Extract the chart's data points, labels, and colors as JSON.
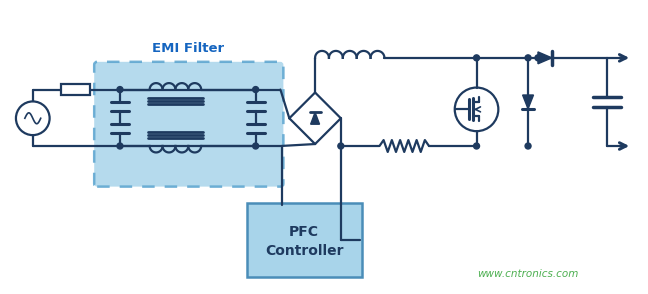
{
  "bg_color": "#ffffff",
  "line_color": "#1e3a5f",
  "emi_box_edge": "#5ba4cf",
  "emi_box_fill": "#a8d4ea",
  "pfc_box_edge": "#4a8db8",
  "pfc_box_fill": "#a8d4ea",
  "title_color": "#1e3a5f",
  "emi_title_color": "#1565c0",
  "watermark_color": "#4caf50",
  "watermark_text": "www.cntronics.com",
  "emi_label": "EMI Filter",
  "pfc_label1": "PFC",
  "pfc_label2": "Controller",
  "line_width": 1.6
}
